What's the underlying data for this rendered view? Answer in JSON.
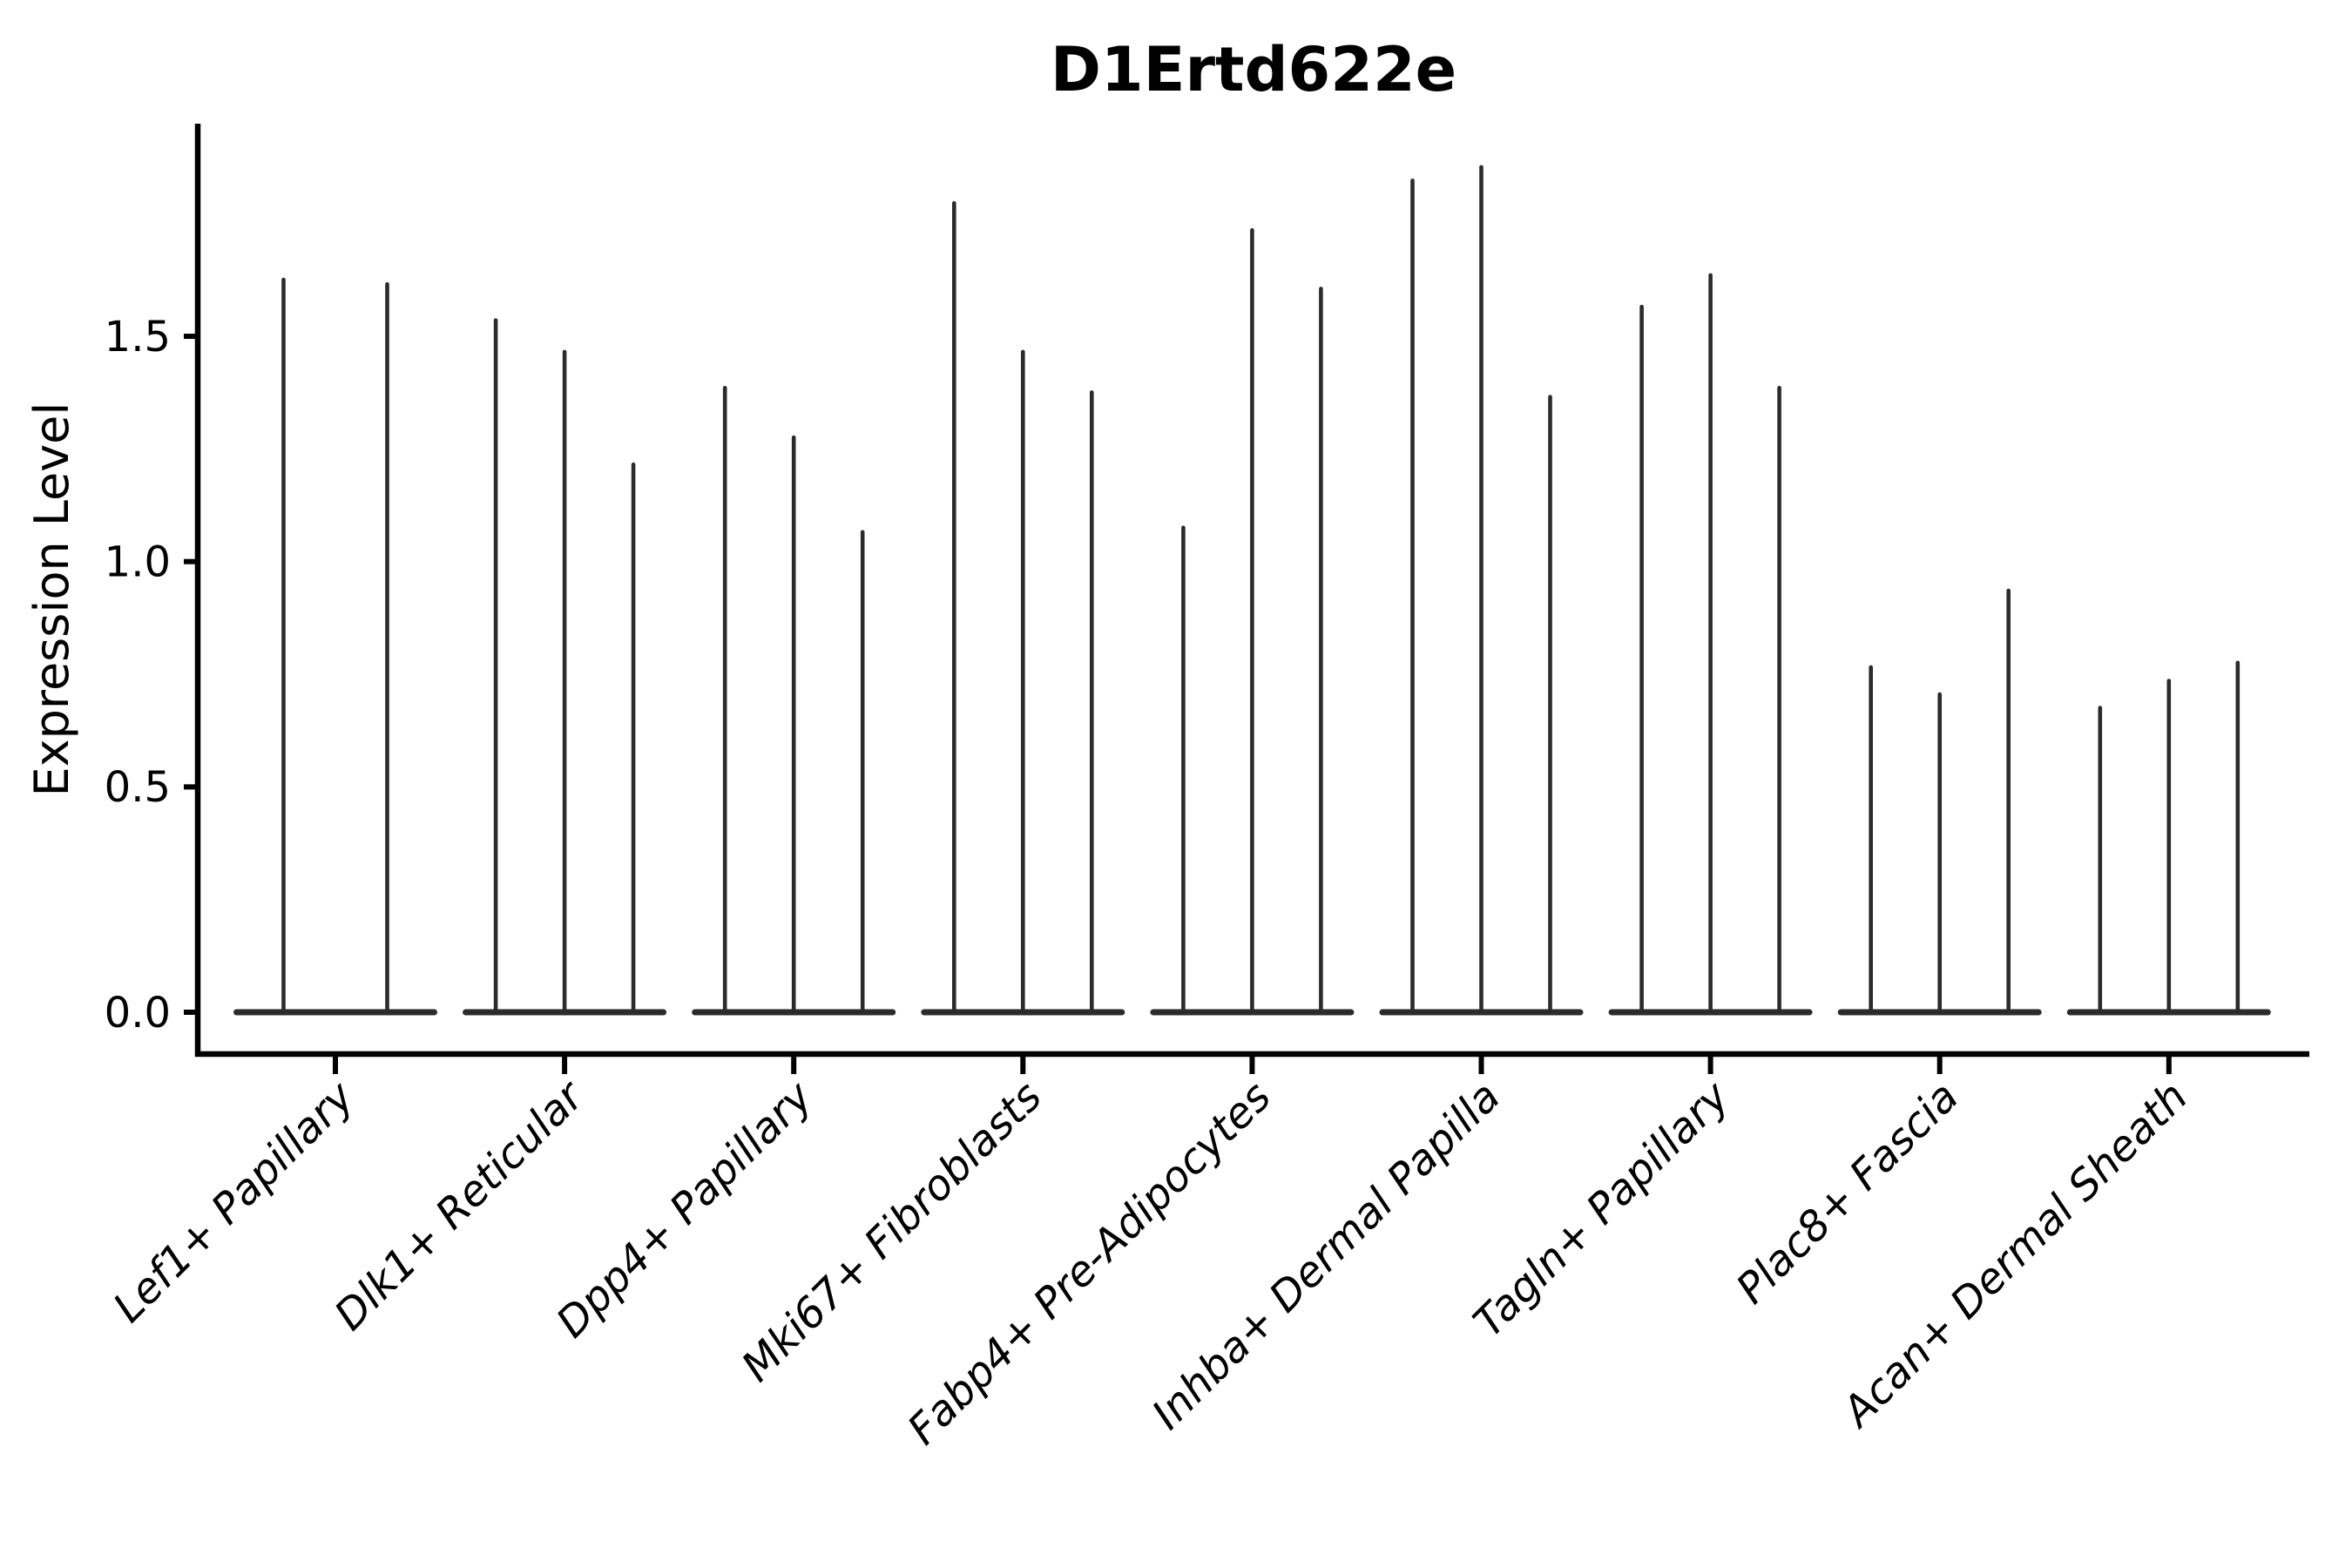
{
  "chart_data": {
    "type": "violin",
    "title": "D1Ertd622e",
    "ylabel": "Expression Level",
    "xlabel": "",
    "yticks": [
      0.0,
      0.5,
      1.0,
      1.5
    ],
    "ytick_labels": [
      "0.0",
      "0.5",
      "1.0",
      "1.5"
    ],
    "ylim": [
      -0.09,
      1.97
    ],
    "grid": false,
    "legend": "none",
    "style_note": "sparse scRNA-seq violin plot: each violin collapses to a flat horizontal base at expression 0 with a thin vertical spike reaching the maximum expression value",
    "categories": [
      {
        "label": "Lef1+ Papillary",
        "spike_maxima": [
          1.63,
          1.62
        ]
      },
      {
        "label": "Dlk1+ Reticular",
        "spike_maxima": [
          1.54,
          1.47,
          1.22
        ]
      },
      {
        "label": "Dpp4+ Papillary",
        "spike_maxima": [
          1.39,
          1.28,
          1.07
        ]
      },
      {
        "label": "Mki67+ Fibroblasts",
        "spike_maxima": [
          1.8,
          1.47,
          1.38
        ]
      },
      {
        "label": "Fabp4+ Pre-Adipocytes",
        "spike_maxima": [
          1.08,
          1.74,
          1.61
        ]
      },
      {
        "label": "Inhba+ Dermal Papilla",
        "spike_maxima": [
          1.85,
          1.88,
          1.37
        ]
      },
      {
        "label": "Tagln+ Papillary",
        "spike_maxima": [
          1.57,
          1.64,
          1.39
        ]
      },
      {
        "label": "Plac8+ Fascia",
        "spike_maxima": [
          0.77,
          0.71,
          0.94
        ]
      },
      {
        "label": "Acan+ Dermal Sheath",
        "spike_maxima": [
          0.68,
          0.74,
          0.78
        ]
      }
    ],
    "colors": {
      "violin_stroke": "#2b2b2b",
      "axis": "#000000",
      "background": "#ffffff"
    }
  }
}
